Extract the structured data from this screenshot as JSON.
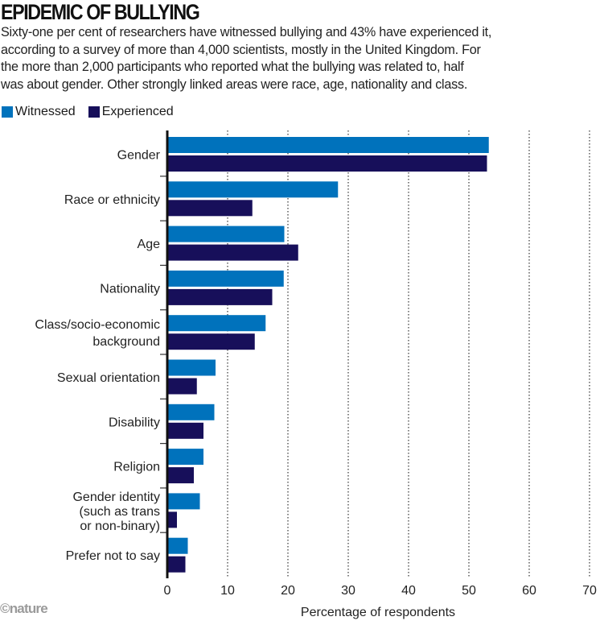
{
  "header": {
    "title": "EPIDEMIC OF BULLYING",
    "subtitle_lines": [
      "Sixty-one per cent of researchers have witnessed bullying and 43% have experienced it,",
      "according to a survey of more than 4,000 scientists, mostly in the United Kingdom. For",
      "the more than 2,000 participants who reported what the bullying was related to, half",
      "was about gender. Other strongly linked areas were race, age, nationality and class."
    ]
  },
  "credit": "©nature",
  "colors": {
    "witnessed": "#0072bc",
    "experienced": "#170f5a"
  },
  "chart_data": {
    "type": "bar",
    "orientation": "horizontal",
    "title": "EPIDEMIC OF BULLYING",
    "xlabel": "Percentage of respondents",
    "ylabel": "",
    "xlim": [
      0,
      70
    ],
    "xticks": [
      0,
      10,
      20,
      30,
      40,
      50,
      60,
      70
    ],
    "grid": "vertical dotted",
    "legend": "top-left",
    "categories": [
      [
        "Gender"
      ],
      [
        "Race or ethnicity"
      ],
      [
        "Age"
      ],
      [
        "Nationality"
      ],
      [
        "Class/socio-economic",
        "background"
      ],
      [
        "Sexual orientation"
      ],
      [
        "Disability"
      ],
      [
        "Religion"
      ],
      [
        "Gender identity",
        "(such as trans",
        "or non-binary)"
      ],
      [
        "Prefer not to say"
      ]
    ],
    "series": [
      {
        "name": "Witnessed",
        "values": [
          53.3,
          28.3,
          19.4,
          19.3,
          16.3,
          8.0,
          7.8,
          6.0,
          5.4,
          3.4
        ]
      },
      {
        "name": "Experienced",
        "values": [
          53.0,
          14.1,
          21.7,
          17.4,
          14.5,
          4.9,
          6.0,
          4.4,
          1.6,
          3.0
        ]
      }
    ]
  }
}
